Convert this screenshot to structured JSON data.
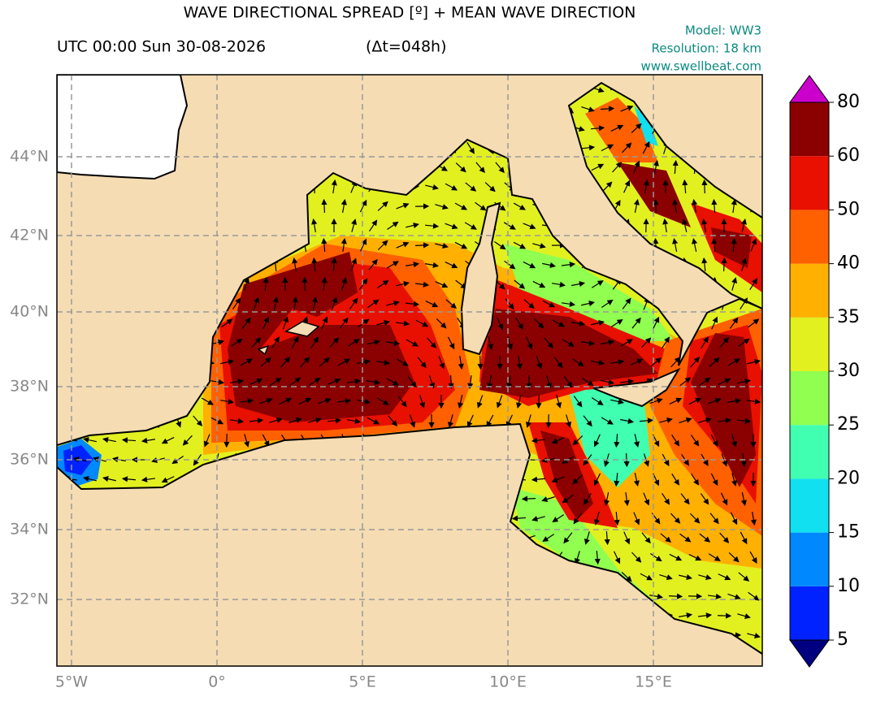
{
  "header": {
    "title": "WAVE DIRECTIONAL SPREAD [º] + MEAN WAVE DIRECTION",
    "time": "UTC 00:00 Sun 30-08-2026",
    "lead": "(Δt=048h)",
    "model": "Model: WW3",
    "resolution": "Resolution: 18 km",
    "site": "www.swellbeat.com"
  },
  "map": {
    "lon_labels": [
      "5°W",
      "0°",
      "5°E",
      "10°E",
      "15°E"
    ],
    "lat_labels": [
      "44°N",
      "42°N",
      "40°N",
      "38°N",
      "36°N",
      "34°N",
      "32°N"
    ]
  },
  "colorbar": {
    "ticks": [
      5,
      10,
      15,
      20,
      25,
      30,
      35,
      40,
      50,
      60,
      80
    ],
    "colors": [
      "#0022ff",
      "#0088ff",
      "#10e0f0",
      "#40ffb0",
      "#90ff50",
      "#e2f020",
      "#ffb000",
      "#ff6000",
      "#e81000",
      "#8b0000"
    ],
    "under_color": "#000080",
    "over_color": "#cc00cc"
  }
}
